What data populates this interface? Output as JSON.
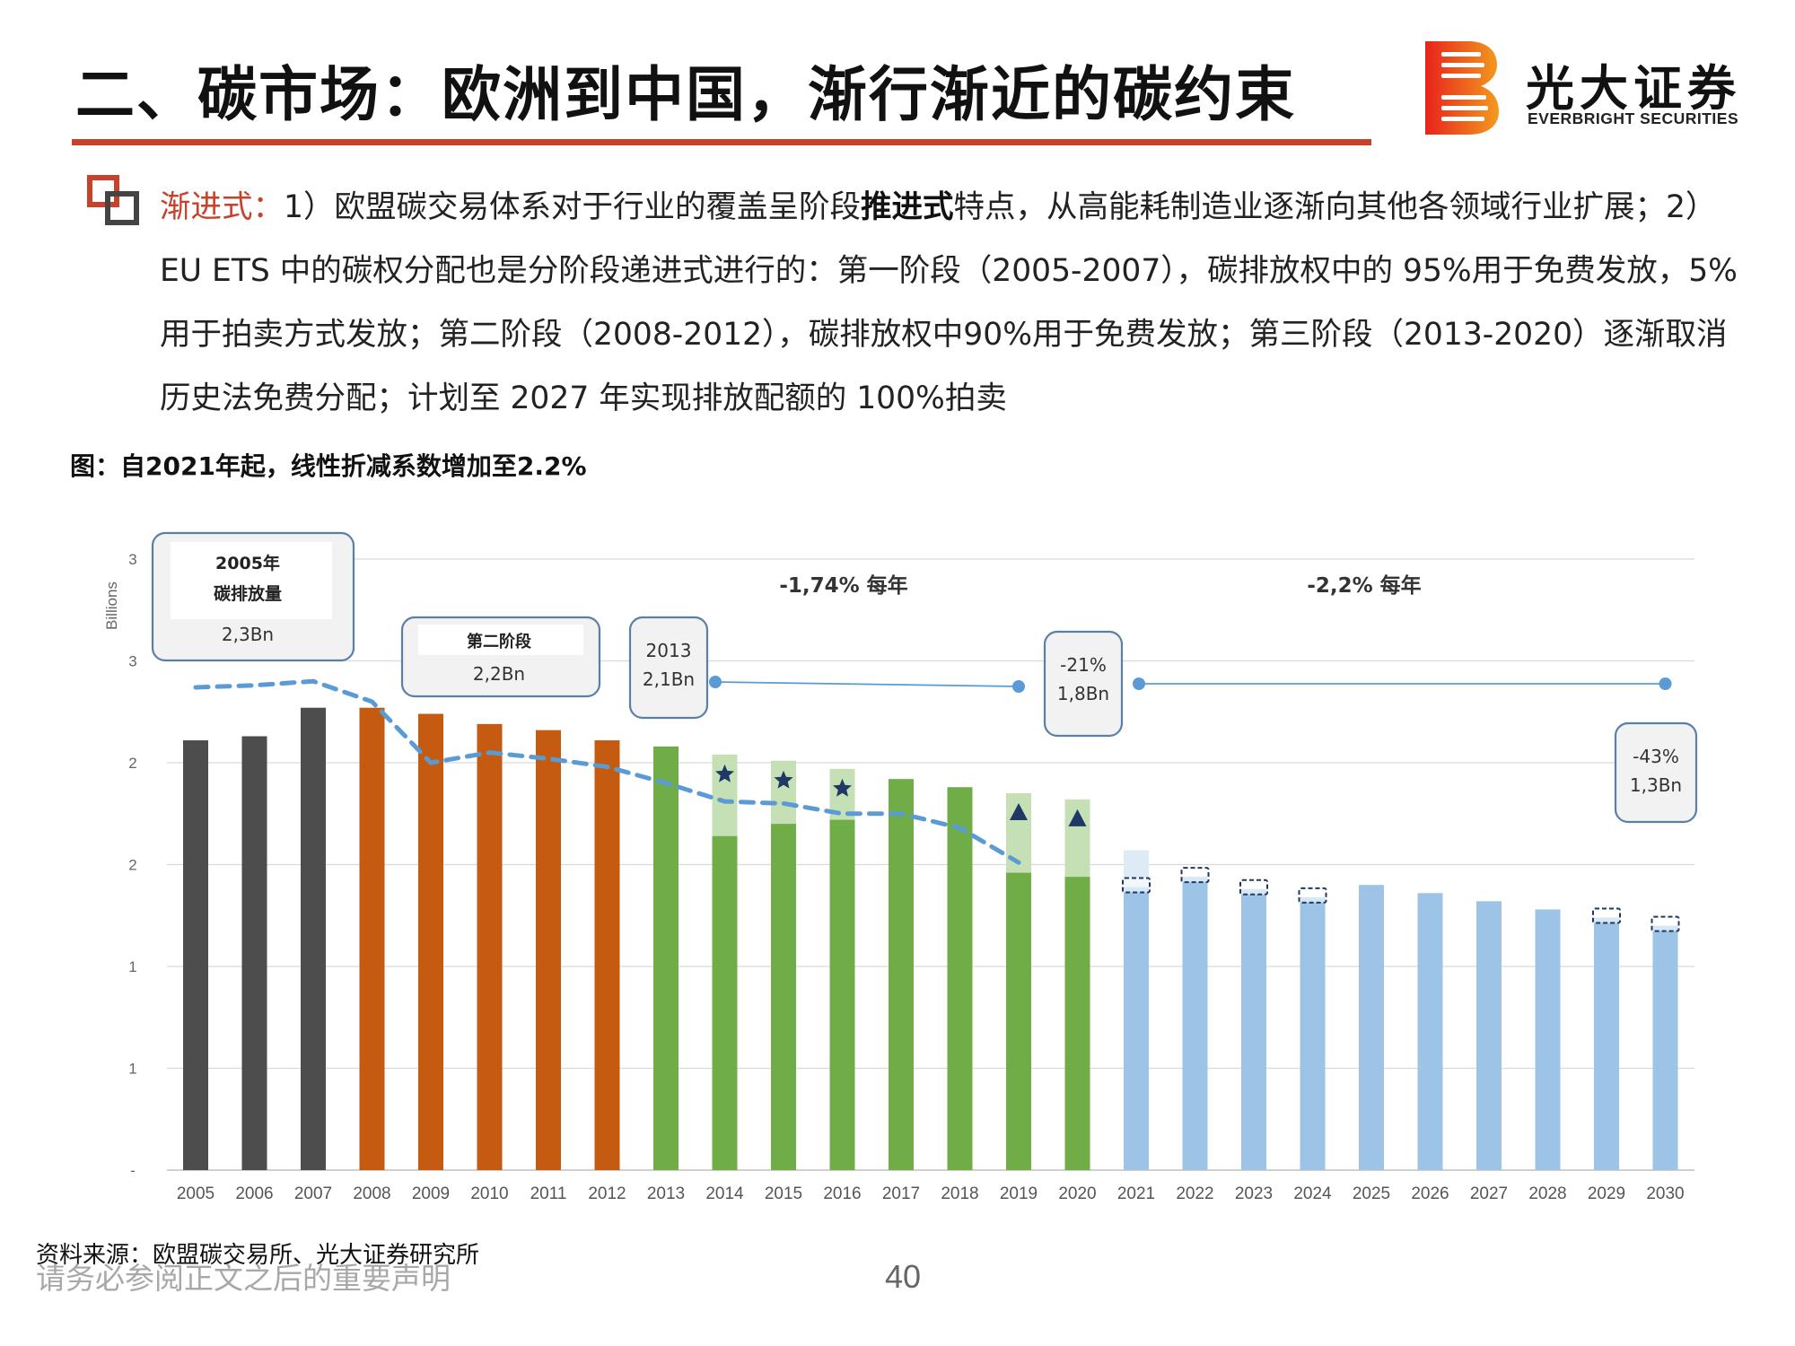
{
  "header": {
    "title": "二、碳市场：欧洲到中国，渐行渐近的碳约束",
    "brand_cn": "光大证券",
    "brand_en": "EVERBRIGHT SECURITIES"
  },
  "body": {
    "lead": "渐进式：",
    "text_1": "1）欧盟碳交易体系对于行业的覆盖呈阶段",
    "bold": "推进式",
    "text_2": "特点，从高能耗制造业逐渐向其他各领域行业扩展；2）EU ETS 中的碳权分配也是分阶段递进式进行的：第一阶段（2005-2007），碳排放权中的 95%用于免费发放，5%用于拍卖方式发放；第二阶段（2008-2012），碳排放权中90%用于免费发放；第三阶段（2013-2020）逐渐取消历史法免费分配；计划至 2027 年实现排放配额的 100%拍卖"
  },
  "figure_caption": "图：自2021年起，线性折减系数增加至2.2%",
  "footer": {
    "source": "资料来源：欧盟碳交易所、光大证券研究所",
    "disclaimer": "请务必参阅正文之后的重要声明",
    "page": "40"
  },
  "colors": {
    "accent": "#c7412b",
    "phase1": "#4d4d4d",
    "phase2": "#c55a11",
    "phase3": "#70ad47",
    "phase3_light": "#c5e0b4",
    "phase4": "#9dc3e6",
    "phase4_light": "#deebf7",
    "trend": "#5b9bd5",
    "marker": "#1f3864"
  },
  "chart_data": {
    "type": "bar",
    "ylabel": "Billions",
    "ytick_labels": [
      "-",
      "1",
      "1",
      "2",
      "2",
      "3",
      "3"
    ],
    "ylim": [
      0,
      3.0
    ],
    "grid": true,
    "categories": [
      "2005",
      "2006",
      "2007",
      "2008",
      "2009",
      "2010",
      "2011",
      "2012",
      "2013",
      "2014",
      "2015",
      "2016",
      "2017",
      "2018",
      "2019",
      "2020",
      "2021",
      "2022",
      "2023",
      "2024",
      "2025",
      "2026",
      "2027",
      "2028",
      "2029",
      "2030"
    ],
    "phases": [
      "I",
      "I",
      "I",
      "II",
      "II",
      "II",
      "II",
      "II",
      "III",
      "III",
      "III",
      "III",
      "III",
      "III",
      "III",
      "III",
      "IV",
      "IV",
      "IV",
      "IV",
      "IV",
      "IV",
      "IV",
      "IV",
      "IV",
      "IV"
    ],
    "series": [
      {
        "values": [
          2.11,
          2.13,
          2.27,
          2.27,
          2.24,
          2.19,
          2.16,
          2.11,
          2.08,
          1.64,
          1.7,
          1.72,
          1.92,
          1.88,
          1.46,
          1.44,
          1.39,
          1.44,
          1.38,
          1.34,
          1.4,
          1.36,
          1.32,
          1.28,
          1.24,
          1.2
        ]
      },
      {
        "values": [
          null,
          null,
          null,
          null,
          null,
          null,
          null,
          null,
          null,
          2.04,
          2.01,
          1.97,
          null,
          null,
          1.85,
          1.82,
          1.57,
          null,
          null,
          null,
          null,
          null,
          null,
          null,
          null,
          null
        ]
      },
      {
        "values": [
          2.37,
          2.38,
          2.4,
          2.3,
          2.0,
          2.05,
          2.02,
          1.98,
          1.9,
          1.81,
          1.8,
          1.75,
          1.75,
          1.68,
          1.51,
          null,
          null,
          null,
          null,
          null,
          null,
          null,
          null,
          null,
          null,
          null
        ]
      }
    ],
    "markers": [
      {
        "category": "2014",
        "shape": "star"
      },
      {
        "category": "2015",
        "shape": "star"
      },
      {
        "category": "2016",
        "shape": "star"
      },
      {
        "category": "2019",
        "shape": "triangle"
      },
      {
        "category": "2020",
        "shape": "triangle"
      }
    ],
    "dashed_boxes": [
      "2021",
      "2022",
      "2023",
      "2024",
      "2029",
      "2030"
    ],
    "trend_labels": [
      {
        "text": "-1,74% 每年",
        "from": "2013",
        "to": "2019"
      },
      {
        "text": "-2,2% 每年",
        "from": "2021",
        "to": "2030"
      }
    ],
    "callouts": [
      {
        "line1": "2005年",
        "line2": "碳排放量",
        "line3": "2,3Bn"
      },
      {
        "line1": "第二阶段",
        "line2": "2,2Bn"
      },
      {
        "line1": "2013",
        "line2": "2,1Bn"
      },
      {
        "line1": "-21%",
        "line2": "1,8Bn"
      },
      {
        "line1": "-43%",
        "line2": "1,3Bn"
      }
    ]
  }
}
